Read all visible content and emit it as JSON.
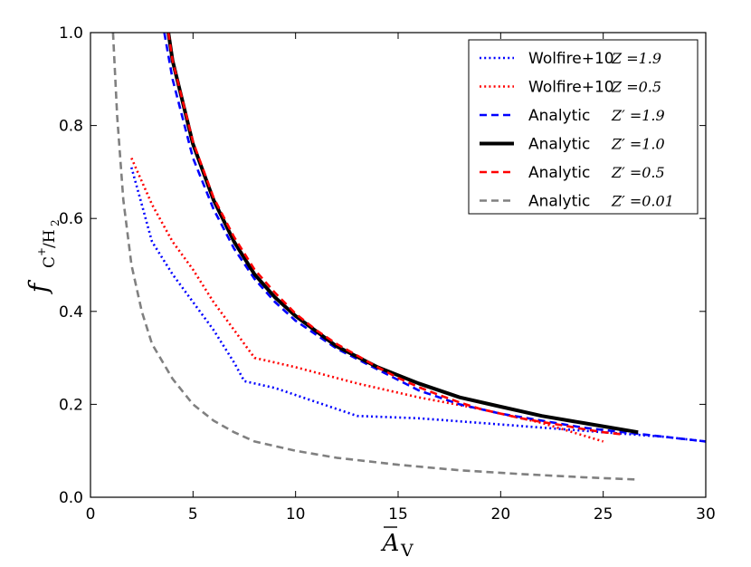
{
  "chart_data": {
    "type": "line",
    "xlabel": "A̅V",
    "ylabel": "f C+/H2",
    "xlim": [
      0,
      30
    ],
    "ylim": [
      0,
      1.0
    ],
    "xticks": [
      0,
      5,
      10,
      15,
      20,
      25,
      30
    ],
    "xtick_labels": [
      "0",
      "5",
      "10",
      "15",
      "20",
      "25",
      "30"
    ],
    "yticks": [
      0.0,
      0.2,
      0.4,
      0.6,
      0.8,
      1.0
    ],
    "ytick_labels": [
      "0.0",
      "0.2",
      "0.4",
      "0.6",
      "0.8",
      "1.0"
    ],
    "grid": false,
    "legend_position": "top-right",
    "series": [
      {
        "name": "Wolfire+10",
        "param": "Z =1.9",
        "color": "#0000ff",
        "style": "dotted",
        "x": [
          2.0,
          2.5,
          3.0,
          4.0,
          5.0,
          6.0,
          7.0,
          7.5,
          9.0,
          11.0,
          13.0,
          16.0,
          19.0,
          22.0,
          25.0,
          28.0,
          30.0
        ],
        "y": [
          0.71,
          0.63,
          0.55,
          0.48,
          0.42,
          0.36,
          0.29,
          0.25,
          0.235,
          0.205,
          0.175,
          0.17,
          0.16,
          0.15,
          0.14,
          0.13,
          0.12
        ]
      },
      {
        "name": "Wolfire+10",
        "param": "Z =0.5",
        "color": "#ff0000",
        "style": "dotted",
        "x": [
          2.0,
          2.5,
          3.0,
          4.0,
          5.0,
          6.0,
          7.0,
          7.5,
          8.0,
          10.0,
          13.0,
          16.0,
          19.0,
          22.0,
          25.0
        ],
        "y": [
          0.73,
          0.68,
          0.63,
          0.55,
          0.49,
          0.42,
          0.36,
          0.33,
          0.3,
          0.28,
          0.245,
          0.215,
          0.19,
          0.16,
          0.12
        ]
      },
      {
        "name": "Analytic",
        "param": "Z′ =1.9",
        "color": "#0000ff",
        "style": "dashed",
        "x": [
          3.6,
          4.0,
          5.0,
          6.0,
          7.0,
          8.0,
          9.0,
          10.0,
          12.0,
          14.0,
          16.0,
          18.0,
          20.0,
          22.0,
          24.0,
          26.0,
          28.0,
          30.0
        ],
        "y": [
          1.0,
          0.9,
          0.73,
          0.62,
          0.535,
          0.47,
          0.42,
          0.38,
          0.32,
          0.275,
          0.23,
          0.2,
          0.18,
          0.165,
          0.15,
          0.14,
          0.13,
          0.12
        ]
      },
      {
        "name": "Analytic",
        "param": "Z′ =1.0",
        "color": "#000000",
        "style": "solid",
        "x": [
          3.8,
          4.0,
          5.0,
          6.0,
          7.0,
          8.0,
          9.0,
          10.0,
          12.0,
          14.0,
          16.0,
          18.0,
          20.0,
          22.0,
          24.0,
          26.7
        ],
        "y": [
          1.0,
          0.94,
          0.76,
          0.64,
          0.55,
          0.48,
          0.43,
          0.39,
          0.325,
          0.28,
          0.245,
          0.215,
          0.195,
          0.175,
          0.16,
          0.14
        ]
      },
      {
        "name": "Analytic",
        "param": "Z′ =0.5",
        "color": "#ff0000",
        "style": "dashed",
        "x": [
          3.8,
          4.0,
          5.0,
          6.0,
          7.0,
          8.0,
          9.0,
          10.0,
          11.0,
          12.0,
          13.0,
          14.0,
          15.0,
          16.0,
          17.0,
          18.0,
          19.0,
          20.0,
          21.0,
          22.0,
          23.0,
          24.0,
          25.0,
          26.0
        ],
        "y": [
          1.0,
          0.94,
          0.765,
          0.645,
          0.56,
          0.49,
          0.44,
          0.395,
          0.36,
          0.33,
          0.305,
          0.28,
          0.257,
          0.237,
          0.22,
          0.204,
          0.19,
          0.18,
          0.17,
          0.162,
          0.155,
          0.147,
          0.14,
          0.135
        ]
      },
      {
        "name": "Analytic",
        "param": "Z′ =0.01",
        "color": "#808080",
        "style": "dashed",
        "x": [
          1.1,
          1.3,
          1.6,
          2.0,
          2.5,
          3.0,
          4.0,
          5.0,
          6.0,
          7.0,
          8.0,
          10.0,
          12.0,
          15.0,
          18.0,
          21.0,
          24.0,
          26.7
        ],
        "y": [
          1.0,
          0.82,
          0.64,
          0.5,
          0.4,
          0.33,
          0.255,
          0.2,
          0.165,
          0.14,
          0.12,
          0.1,
          0.085,
          0.07,
          0.058,
          0.05,
          0.043,
          0.038
        ]
      }
    ]
  }
}
